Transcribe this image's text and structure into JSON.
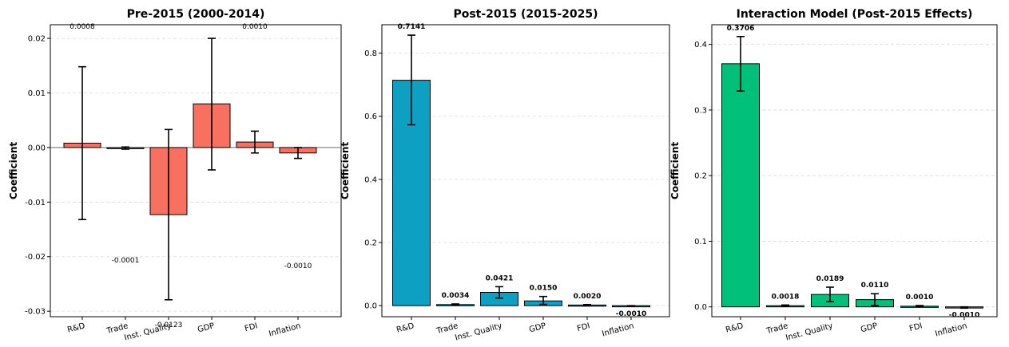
{
  "chart_data": [
    {
      "type": "bar",
      "title": "Pre-2015 (2000-2014)",
      "ylabel": "Coefficient",
      "categories": [
        "R&D",
        "Trade",
        "Inst. Quality",
        "GDP",
        "FDI",
        "Inflation"
      ],
      "values": [
        0.0008,
        -0.0001,
        -0.0123,
        0.008,
        0.001,
        -0.001
      ],
      "error_low": [
        -0.0132,
        -0.0003,
        -0.0279,
        -0.0041,
        -0.001,
        -0.002
      ],
      "error_high": [
        0.0148,
        0.0001,
        0.0033,
        0.02,
        0.003,
        0.0
      ],
      "value_labels": [
        "0.0008",
        "-0.0001",
        "-0.0123",
        "",
        "0.0010",
        "-0.0010"
      ],
      "ylim": [
        -0.031,
        0.0225
      ],
      "yticks": [
        -0.03,
        -0.02,
        -0.01,
        0.0,
        0.01,
        0.02
      ],
      "ytick_labels": [
        "-0.03",
        "-0.02",
        "-0.01",
        "0.00",
        "0.01",
        "0.02"
      ],
      "bold_value_labels": false,
      "grid": true,
      "color": "#f87060"
    },
    {
      "type": "bar",
      "title": "Post-2015 (2015-2025)",
      "ylabel": "Coefficient",
      "categories": [
        "R&D",
        "Trade",
        "Inst. Quality",
        "GDP",
        "FDI",
        "Inflation"
      ],
      "values": [
        0.7141,
        0.0034,
        0.0421,
        0.015,
        0.002,
        -0.001
      ],
      "error_low": [
        0.573,
        0.0014,
        0.024,
        0.004,
        0.0005,
        -0.002
      ],
      "error_high": [
        0.857,
        0.0054,
        0.06,
        0.029,
        0.0035,
        0.0
      ],
      "value_labels": [
        "0.7141",
        "0.0034",
        "0.0421",
        "0.0150",
        "0.0020",
        "-0.0010"
      ],
      "ylim": [
        -0.035,
        0.89
      ],
      "yticks": [
        0.0,
        0.2,
        0.4,
        0.6,
        0.8
      ],
      "ytick_labels": [
        "0.0",
        "0.2",
        "0.4",
        "0.6",
        "0.8"
      ],
      "bold_value_labels": true,
      "grid": true,
      "color": "#0ea0c2"
    },
    {
      "type": "bar",
      "title": "Interaction Model (Post-2015 Effects)",
      "ylabel": "Coefficient",
      "categories": [
        "R&D",
        "Trade",
        "Inst. Quality",
        "GDP",
        "FDI",
        "Inflation"
      ],
      "values": [
        0.3706,
        0.0018,
        0.0189,
        0.011,
        0.001,
        -0.001
      ],
      "error_low": [
        0.329,
        0.0008,
        0.008,
        0.002,
        0.0,
        -0.002
      ],
      "error_high": [
        0.412,
        0.0028,
        0.03,
        0.02,
        0.002,
        0.0
      ],
      "value_labels": [
        "0.3706",
        "0.0018",
        "0.0189",
        "0.0110",
        "0.0010",
        "-0.0010"
      ],
      "ylim": [
        -0.015,
        0.43
      ],
      "yticks": [
        0.0,
        0.1,
        0.2,
        0.3,
        0.4
      ],
      "ytick_labels": [
        "0.0",
        "0.1",
        "0.2",
        "0.3",
        "0.4"
      ],
      "bold_value_labels": true,
      "grid": true,
      "color": "#00c07a"
    }
  ]
}
